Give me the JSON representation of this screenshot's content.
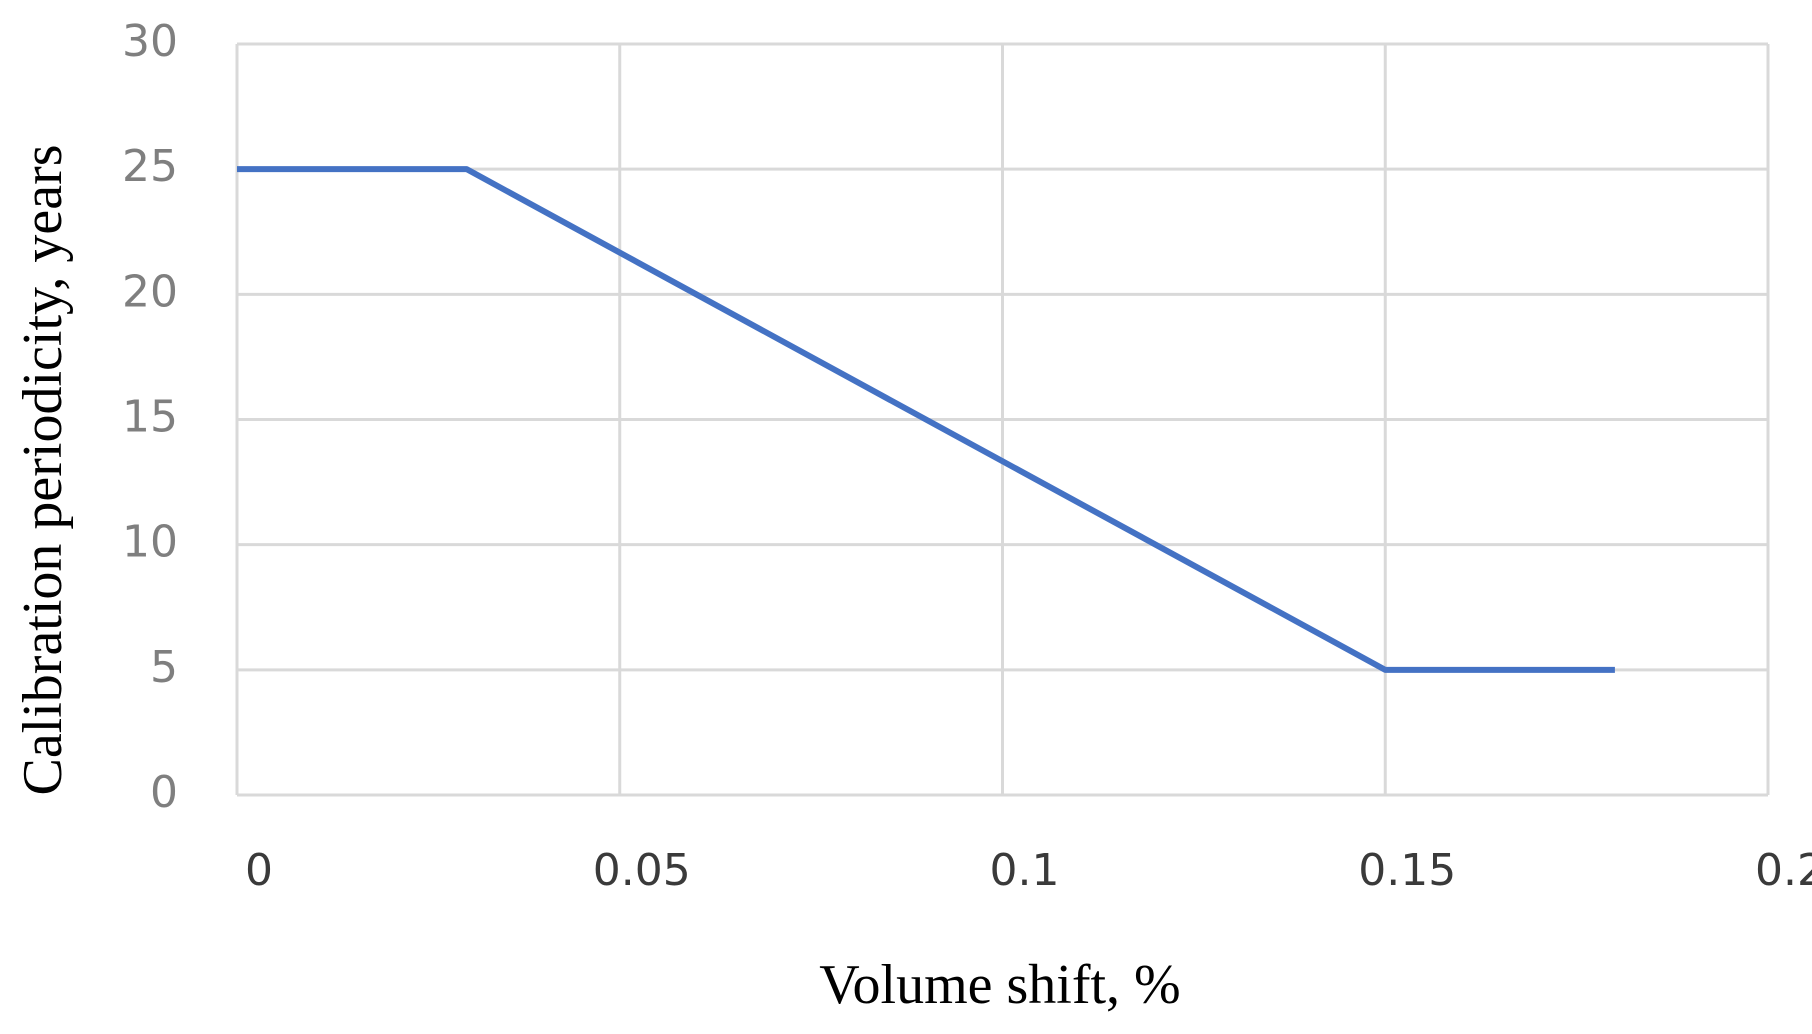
{
  "chart_data": {
    "type": "line",
    "x_label": "Volume shift, %",
    "y_label": "Calibration periodicity, years",
    "x": [
      0,
      0.03,
      0.15,
      0.18
    ],
    "series": [
      {
        "color": "#4472c4",
        "values": [
          25,
          25,
          5,
          5
        ]
      }
    ],
    "xlim": [
      0,
      0.2
    ],
    "xticks": [
      0,
      0.05,
      0.1,
      0.15,
      0.2
    ],
    "ylim": [
      0,
      30
    ],
    "yticks": [
      0,
      5,
      10,
      15,
      20,
      25,
      30
    ],
    "grid": true
  }
}
